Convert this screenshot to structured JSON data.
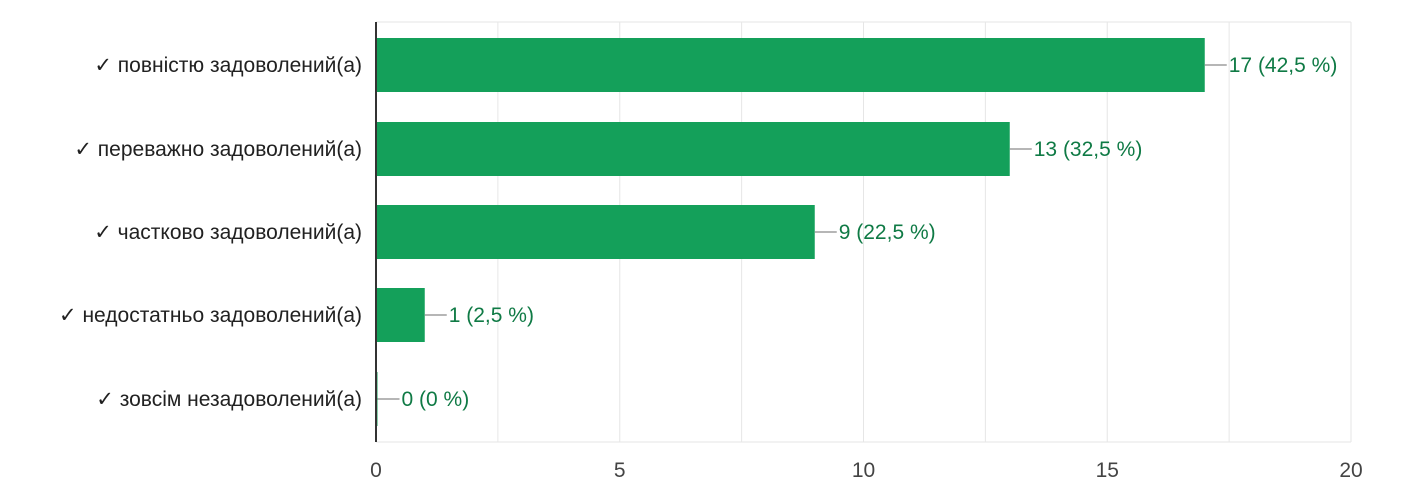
{
  "chart_data": {
    "type": "bar",
    "orientation": "horizontal",
    "categories": [
      "✓ повністю задоволений(а)",
      "✓ переважно задоволений(а)",
      "✓ частково задоволений(а)",
      "✓ недостатньо задоволений(а)",
      "✓ зовсім незадоволений(а)"
    ],
    "values": [
      17,
      13,
      9,
      1,
      0
    ],
    "data_labels": [
      "17 (42,5 %)",
      "13 (32,5 %)",
      "9 (22,5 %)",
      "1 (2,5 %)",
      "0 (0 %)"
    ],
    "xlim": [
      0,
      20
    ],
    "xticks": [
      0,
      5,
      10,
      15,
      20
    ],
    "grid": true,
    "legend": "none",
    "title": "",
    "xlabel": "",
    "ylabel": "",
    "colors": {
      "bar": "#14a05a",
      "data_label": "#0f7a45",
      "leader": "#9e9e9e",
      "grid": "#e6e6e6",
      "axis": "#333333"
    }
  }
}
